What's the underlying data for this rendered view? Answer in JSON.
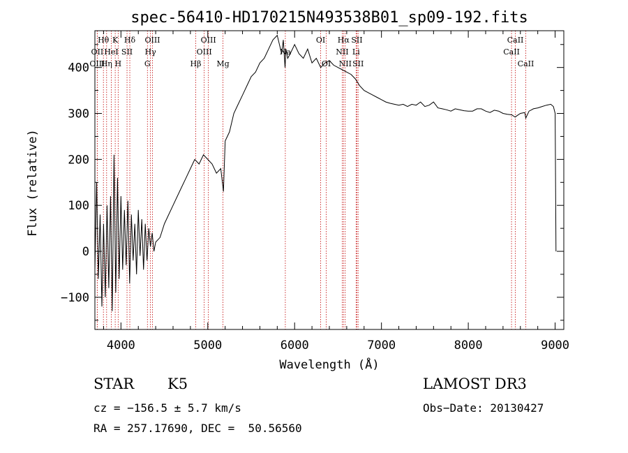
{
  "chart_data": {
    "type": "line",
    "title": "spec-56410-HD170215N493538B01_sp09-192.fits",
    "xlabel": "Wavelength (Å)",
    "ylabel": "Flux (relative)",
    "xlim": [
      3700,
      9100
    ],
    "ylim": [
      -170,
      480
    ],
    "x_ticks": [
      4000,
      5000,
      6000,
      7000,
      8000,
      9000
    ],
    "y_ticks": [
      -100,
      0,
      100,
      200,
      300,
      400
    ],
    "grid": false,
    "series": [
      {
        "color": "#000000",
        "x": [
          3700,
          3720,
          3740,
          3760,
          3780,
          3800,
          3820,
          3840,
          3860,
          3880,
          3900,
          3920,
          3940,
          3960,
          3980,
          4000,
          4020,
          4040,
          4060,
          4080,
          4100,
          4120,
          4140,
          4160,
          4180,
          4200,
          4220,
          4240,
          4260,
          4280,
          4300,
          4320,
          4340,
          4360,
          4380,
          4400,
          4450,
          4500,
          4550,
          4600,
          4650,
          4700,
          4750,
          4800,
          4850,
          4900,
          4950,
          5000,
          5050,
          5100,
          5150,
          5180,
          5200,
          5250,
          5300,
          5350,
          5400,
          5450,
          5500,
          5550,
          5600,
          5650,
          5700,
          5750,
          5800,
          5850,
          5870,
          5890,
          5900,
          5920,
          5950,
          6000,
          6050,
          6100,
          6150,
          6200,
          6250,
          6300,
          6350,
          6400,
          6450,
          6500,
          6550,
          6600,
          6650,
          6700,
          6750,
          6800,
          6850,
          6900,
          6950,
          7000,
          7050,
          7100,
          7150,
          7200,
          7250,
          7300,
          7350,
          7400,
          7450,
          7500,
          7550,
          7600,
          7650,
          7700,
          7750,
          7800,
          7850,
          7900,
          7950,
          8000,
          8050,
          8100,
          8150,
          8200,
          8250,
          8300,
          8350,
          8400,
          8450,
          8500,
          8540,
          8560,
          8600,
          8650,
          8662,
          8700,
          8750,
          8800,
          8850,
          8900,
          8950,
          8980,
          9000,
          9005,
          9010
        ],
        "y": [
          -40,
          150,
          -60,
          80,
          -120,
          60,
          -100,
          100,
          -80,
          120,
          -130,
          210,
          -90,
          160,
          -60,
          120,
          -40,
          90,
          -30,
          110,
          -70,
          80,
          -20,
          60,
          -50,
          90,
          -10,
          70,
          -40,
          60,
          -20,
          50,
          10,
          40,
          0,
          20,
          30,
          60,
          80,
          100,
          120,
          140,
          160,
          180,
          200,
          190,
          210,
          200,
          190,
          170,
          180,
          130,
          240,
          260,
          300,
          320,
          340,
          360,
          380,
          390,
          410,
          420,
          440,
          460,
          470,
          430,
          460,
          400,
          440,
          420,
          430,
          450,
          430,
          420,
          440,
          410,
          420,
          400,
          410,
          415,
          405,
          400,
          395,
          390,
          385,
          375,
          360,
          350,
          345,
          340,
          335,
          330,
          325,
          322,
          320,
          318,
          320,
          315,
          320,
          318,
          325,
          315,
          318,
          325,
          312,
          310,
          308,
          305,
          310,
          308,
          306,
          305,
          305,
          310,
          310,
          305,
          302,
          307,
          305,
          300,
          298,
          297,
          292,
          295,
          300,
          302,
          290,
          305,
          310,
          312,
          315,
          318,
          320,
          315,
          300,
          150,
          0
        ]
      }
    ],
    "line_labels": [
      {
        "text": "Hθ",
        "wavelength": 3798,
        "row": 1
      },
      {
        "text": "OII",
        "wavelength": 3727,
        "row": 2
      },
      {
        "text": "OIII",
        "wavelength": 3727,
        "row": 3
      },
      {
        "text": "K",
        "wavelength": 3934,
        "row": 1
      },
      {
        "text": "HeI",
        "wavelength": 3889,
        "row": 2
      },
      {
        "text": "Hη",
        "wavelength": 3835,
        "row": 3
      },
      {
        "text": "SII",
        "wavelength": 4070,
        "row": 2
      },
      {
        "text": "H",
        "wavelength": 3968,
        "row": 3
      },
      {
        "text": "Hδ",
        "wavelength": 4102,
        "row": 1
      },
      {
        "text": "OIII",
        "wavelength": 4363,
        "row": 1
      },
      {
        "text": "Hγ",
        "wavelength": 4340,
        "row": 2
      },
      {
        "text": "G",
        "wavelength": 4305,
        "row": 3
      },
      {
        "text": "Hβ",
        "wavelength": 4861,
        "row": 3
      },
      {
        "text": "OIII",
        "wavelength": 5007,
        "row": 1
      },
      {
        "text": "OIII",
        "wavelength": 4959,
        "row": 2
      },
      {
        "text": "Mg",
        "wavelength": 5175,
        "row": 3
      },
      {
        "text": "Na",
        "wavelength": 5893,
        "row": 2
      },
      {
        "text": "OI",
        "wavelength": 6300,
        "row": 1
      },
      {
        "text": "OI",
        "wavelength": 6364,
        "row": 3
      },
      {
        "text": "Hα",
        "wavelength": 6563,
        "row": 1
      },
      {
        "text": "NII",
        "wavelength": 6548,
        "row": 2
      },
      {
        "text": "NII",
        "wavelength": 6583,
        "row": 3
      },
      {
        "text": "SII",
        "wavelength": 6717,
        "row": 1
      },
      {
        "text": "Li",
        "wavelength": 6708,
        "row": 2
      },
      {
        "text": "SII",
        "wavelength": 6731,
        "row": 3
      },
      {
        "text": "CaII",
        "wavelength": 8542,
        "row": 1
      },
      {
        "text": "CaII",
        "wavelength": 8498,
        "row": 2
      },
      {
        "text": "CaII",
        "wavelength": 8662,
        "row": 3
      }
    ],
    "line_marker_color": "#c00000"
  },
  "info": {
    "class": "STAR",
    "subclass": "K5",
    "survey": "LAMOST DR3",
    "cz": "cz = −156.5 ± 5.7 km/s",
    "obs_date": "Obs−Date: 20130427",
    "coords": "RA = 257.17690, DEC =  50.56560"
  }
}
